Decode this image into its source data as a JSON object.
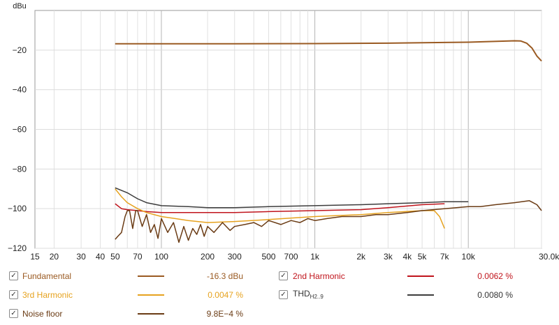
{
  "chart_data": {
    "type": "line",
    "ylabel": "dBu",
    "xlabel": "",
    "x_scale": "log",
    "xlim": [
      15,
      30000
    ],
    "ylim": [
      -120,
      0
    ],
    "grid": true,
    "x_tick_labels": [
      "15",
      "20",
      "30",
      "40",
      "50",
      "70",
      "100",
      "200",
      "300",
      "500",
      "700",
      "1k",
      "2k",
      "3k",
      "4k",
      "5k",
      "7k",
      "10k",
      "30.0kHz"
    ],
    "y_tick_labels": [
      "-20",
      "-40",
      "-60",
      "-80",
      "-100",
      "-120"
    ],
    "series": [
      {
        "name": "Fundamental",
        "color": "#9a5a22",
        "x": [
          50,
          100,
          300,
          1000,
          3000,
          10000,
          20000,
          22000,
          24000,
          26000,
          28000,
          30000
        ],
        "y": [
          -16.8,
          -16.8,
          -16.8,
          -16.7,
          -16.5,
          -16.0,
          -15.3,
          -15.4,
          -16.5,
          -19.0,
          -23.0,
          -25.5
        ]
      },
      {
        "name": "2nd Harmonic",
        "color": "#c0141c",
        "x": [
          50,
          55,
          60,
          70,
          80,
          100,
          150,
          200,
          300,
          500,
          1000,
          2000,
          3000,
          5000,
          7000
        ],
        "y": [
          -97.5,
          -100.0,
          -100.5,
          -101.0,
          -101.5,
          -102.0,
          -102.0,
          -102.0,
          -102.0,
          -101.5,
          -101.0,
          -100.5,
          -99.5,
          -98.0,
          -97.5
        ]
      },
      {
        "name": "3rd Harmonic",
        "color": "#e6a21e",
        "x": [
          50,
          55,
          60,
          70,
          80,
          100,
          150,
          200,
          300,
          500,
          1000,
          2000,
          3000,
          5000,
          6000,
          6500,
          7000
        ],
        "y": [
          -90.0,
          -94.0,
          -97.0,
          -100.0,
          -102.0,
          -104.0,
          -106.0,
          -107.0,
          -106.5,
          -105.5,
          -104.0,
          -103.0,
          -102.0,
          -101.0,
          -101.0,
          -104.0,
          -110.0
        ]
      },
      {
        "name": "THD",
        "color": "#3c3c3c",
        "x": [
          50,
          60,
          70,
          80,
          100,
          150,
          200,
          300,
          500,
          1000,
          2000,
          3000,
          5000,
          7000,
          10000
        ],
        "y": [
          -89.5,
          -92.0,
          -95.0,
          -97.0,
          -98.5,
          -99.0,
          -99.5,
          -99.5,
          -99.0,
          -98.5,
          -98.0,
          -97.5,
          -97.0,
          -96.5,
          -96.5
        ]
      },
      {
        "name": "Noise floor",
        "color": "#6a3b14",
        "x": [
          50,
          52,
          55,
          58,
          60,
          62,
          65,
          68,
          70,
          75,
          80,
          85,
          90,
          95,
          100,
          110,
          120,
          130,
          140,
          150,
          160,
          170,
          180,
          190,
          200,
          220,
          250,
          280,
          300,
          350,
          400,
          450,
          500,
          600,
          700,
          800,
          900,
          1000,
          1200,
          1500,
          2000,
          2500,
          3000,
          4000,
          5000,
          7000,
          10000,
          12000,
          15000,
          20000,
          25000,
          28000,
          30000
        ],
        "y": [
          -115.5,
          -114,
          -112,
          -104,
          -101,
          -101,
          -110,
          -101,
          -101,
          -109,
          -103,
          -112,
          -108,
          -115,
          -105,
          -112,
          -107,
          -117,
          -109,
          -116,
          -110,
          -113,
          -108,
          -114,
          -109,
          -112,
          -107,
          -111,
          -109,
          -108,
          -107,
          -109,
          -106,
          -108,
          -106,
          -107,
          -105,
          -106,
          -105,
          -104,
          -104,
          -103,
          -103,
          -102,
          -101,
          -100,
          -99,
          -99,
          -98,
          -97,
          -96,
          -98,
          -101
        ]
      }
    ]
  },
  "legend": [
    {
      "label": "Fundamental",
      "value": "-16.3 dBu",
      "checked": "✓",
      "color": "#9a5a22",
      "label_color": "#9a5a22",
      "value_color": "#9a5a22"
    },
    {
      "label": "2nd Harmonic",
      "value": "0.0062 %",
      "checked": "✓",
      "color": "#c0141c",
      "label_color": "#c0141c",
      "value_color": "#c0141c"
    },
    {
      "label": "3rd Harmonic",
      "value": "0.0047 %",
      "checked": "✓",
      "color": "#e6a21e",
      "label_color": "#e6a21e",
      "value_color": "#e6a21e"
    },
    {
      "label": "THD",
      "label_sub": "H2..9",
      "value": "0.0080 %",
      "checked": "✓",
      "color": "#3c3c3c",
      "label_color": "#333333",
      "value_color": "#333333"
    },
    {
      "label": "Noise floor",
      "value": "9.8E−4 %",
      "checked": "✓",
      "color": "#6a3b14",
      "label_color": "#6a3b14",
      "value_color": "#6a3b14"
    }
  ]
}
